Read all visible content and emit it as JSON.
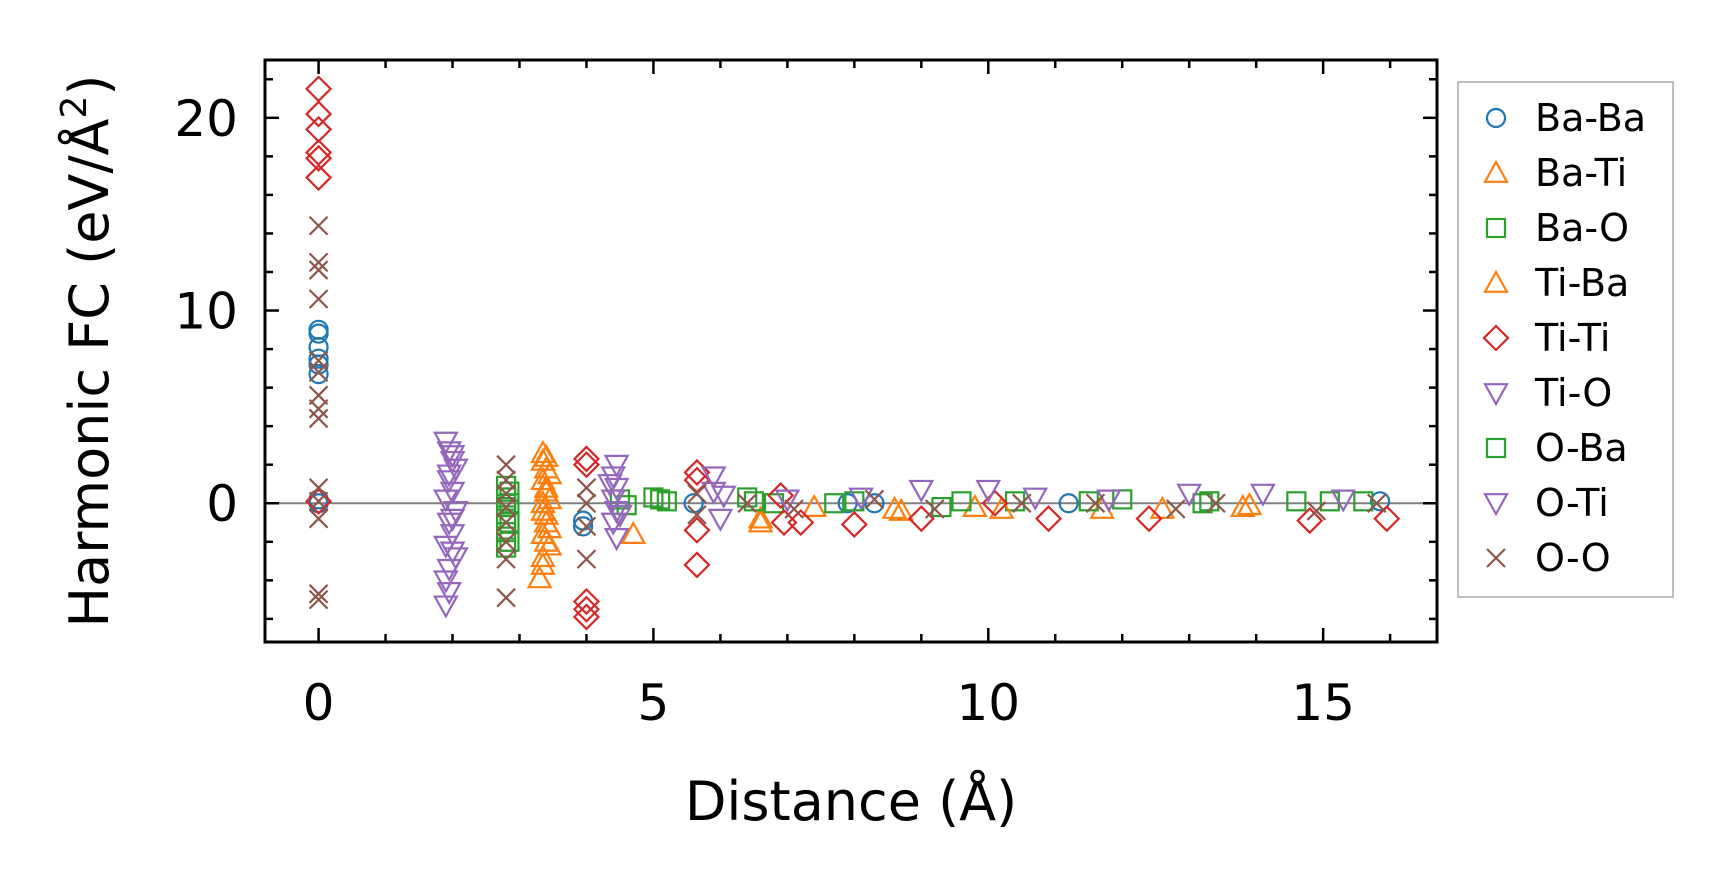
{
  "chart_data": {
    "type": "scatter",
    "title": "",
    "xlabel": "Distance (Å)",
    "ylabel": "Harmonic FC (eV/Å",
    "ylabel_sup": "2",
    "ylabel_close": ")",
    "xlim": [
      -0.8,
      16.7
    ],
    "ylim": [
      -7.2,
      23.0
    ],
    "xticks": [
      0,
      5,
      10,
      15
    ],
    "yticks": [
      0,
      10,
      20
    ],
    "zero_line": true,
    "legend_position": "outside-right",
    "series": [
      {
        "name": "Ba-Ba",
        "marker": "circle",
        "color": "#1f77b4",
        "points": [
          [
            0,
            9.0
          ],
          [
            0,
            8.8
          ],
          [
            0,
            8.1
          ],
          [
            0,
            7.5
          ],
          [
            0,
            7.2
          ],
          [
            0,
            6.7
          ],
          [
            0,
            0.2
          ],
          [
            0,
            0.0
          ],
          [
            3.95,
            -1.2
          ],
          [
            3.95,
            -0.9
          ],
          [
            5.6,
            0.0
          ],
          [
            7.9,
            0.0
          ],
          [
            8.3,
            0.0
          ],
          [
            11.2,
            0.0
          ],
          [
            15.85,
            0.1
          ]
        ]
      },
      {
        "name": "Ba-Ti",
        "marker": "triangle-up",
        "color": "#ff7f0e",
        "points": [
          [
            3.35,
            2.6
          ],
          [
            3.35,
            2.2
          ],
          [
            3.4,
            1.8
          ],
          [
            3.35,
            1.2
          ],
          [
            3.4,
            0.6
          ],
          [
            3.45,
            0.2
          ],
          [
            3.35,
            -0.4
          ],
          [
            3.4,
            -1.0
          ],
          [
            3.35,
            -1.6
          ],
          [
            3.45,
            -2.2
          ],
          [
            3.35,
            -2.8
          ],
          [
            3.35,
            -3.2
          ],
          [
            3.3,
            -3.9
          ],
          [
            4.7,
            -1.6
          ],
          [
            6.6,
            -0.8
          ],
          [
            8.6,
            -0.3
          ],
          [
            9.8,
            -0.2
          ],
          [
            11.7,
            -0.3
          ],
          [
            13.8,
            -0.2
          ]
        ]
      },
      {
        "name": "Ba-O",
        "marker": "square",
        "color": "#2ca02c",
        "points": [
          [
            2.8,
            0.9
          ],
          [
            2.8,
            0.3
          ],
          [
            2.8,
            -0.2
          ],
          [
            2.8,
            -0.8
          ],
          [
            2.8,
            -1.5
          ],
          [
            2.8,
            -2.3
          ],
          [
            4.5,
            0.2
          ],
          [
            4.6,
            -0.1
          ],
          [
            5.0,
            0.3
          ],
          [
            5.2,
            0.1
          ],
          [
            6.4,
            0.3
          ],
          [
            6.8,
            0.0
          ],
          [
            8.0,
            0.1
          ],
          [
            9.3,
            -0.2
          ],
          [
            10.4,
            0.1
          ],
          [
            12.0,
            0.2
          ],
          [
            13.2,
            0.0
          ],
          [
            14.6,
            0.1
          ],
          [
            15.6,
            0.1
          ]
        ]
      },
      {
        "name": "Ti-Ba",
        "marker": "triangle-up",
        "color": "#ff7f0e",
        "points": [
          [
            3.4,
            2.4
          ],
          [
            3.45,
            1.5
          ],
          [
            3.4,
            0.8
          ],
          [
            3.35,
            0.0
          ],
          [
            3.4,
            -0.6
          ],
          [
            3.45,
            -1.3
          ],
          [
            3.4,
            -2.0
          ],
          [
            6.6,
            -1.0
          ],
          [
            7.4,
            -0.2
          ],
          [
            8.7,
            -0.4
          ],
          [
            10.2,
            -0.3
          ],
          [
            12.6,
            -0.3
          ],
          [
            13.9,
            -0.1
          ]
        ]
      },
      {
        "name": "Ti-Ti",
        "marker": "diamond",
        "color": "#d62728",
        "points": [
          [
            0,
            21.5
          ],
          [
            0,
            20.2
          ],
          [
            0,
            19.4
          ],
          [
            0,
            18.2
          ],
          [
            0,
            17.9
          ],
          [
            0,
            16.9
          ],
          [
            0,
            0.1
          ],
          [
            4.0,
            2.3
          ],
          [
            4.0,
            2.0
          ],
          [
            4.0,
            -5.1
          ],
          [
            4.0,
            -5.5
          ],
          [
            4.0,
            -5.9
          ],
          [
            5.65,
            1.6
          ],
          [
            5.65,
            1.2
          ],
          [
            5.65,
            -1.4
          ],
          [
            5.65,
            -3.2
          ],
          [
            6.9,
            0.4
          ],
          [
            6.95,
            -1.0
          ],
          [
            7.2,
            -1.0
          ],
          [
            8.0,
            -1.1
          ],
          [
            9.0,
            -0.8
          ],
          [
            10.1,
            0.0
          ],
          [
            10.9,
            -0.8
          ],
          [
            12.4,
            -0.8
          ],
          [
            14.8,
            -0.9
          ],
          [
            15.95,
            -0.8
          ]
        ]
      },
      {
        "name": "Ti-O",
        "marker": "triangle-down",
        "color": "#9467bd",
        "points": [
          [
            1.9,
            3.2
          ],
          [
            1.95,
            2.7
          ],
          [
            2.0,
            2.2
          ],
          [
            2.05,
            1.8
          ],
          [
            1.95,
            1.2
          ],
          [
            2.0,
            0.6
          ],
          [
            1.9,
            0.2
          ],
          [
            2.05,
            -0.4
          ],
          [
            1.95,
            -1.0
          ],
          [
            2.0,
            -1.6
          ],
          [
            1.9,
            -2.2
          ],
          [
            2.05,
            -2.8
          ],
          [
            1.95,
            -3.4
          ],
          [
            1.9,
            -4.0
          ],
          [
            1.95,
            -4.6
          ],
          [
            1.9,
            -5.3
          ],
          [
            4.45,
            2.0
          ],
          [
            4.4,
            1.4
          ],
          [
            4.45,
            0.8
          ],
          [
            4.4,
            0.2
          ],
          [
            4.45,
            -0.4
          ],
          [
            4.4,
            -1.0
          ],
          [
            4.45,
            -1.8
          ],
          [
            5.9,
            1.4
          ],
          [
            5.9,
            0.6
          ],
          [
            6.0,
            -0.8
          ],
          [
            9.0,
            0.7
          ],
          [
            10.0,
            0.7
          ],
          [
            13.0,
            0.5
          ],
          [
            14.1,
            0.5
          ]
        ]
      },
      {
        "name": "O-Ba",
        "marker": "square",
        "color": "#2ca02c",
        "points": [
          [
            2.85,
            0.6
          ],
          [
            2.85,
            0.0
          ],
          [
            2.85,
            -1.0
          ],
          [
            2.85,
            -2.0
          ],
          [
            5.1,
            0.2
          ],
          [
            6.5,
            0.1
          ],
          [
            7.7,
            0.0
          ],
          [
            9.6,
            0.1
          ],
          [
            11.5,
            0.1
          ],
          [
            13.3,
            0.1
          ],
          [
            15.1,
            0.1
          ]
        ]
      },
      {
        "name": "O-Ti",
        "marker": "triangle-down",
        "color": "#9467bd",
        "points": [
          [
            2.0,
            2.5
          ],
          [
            1.95,
            1.5
          ],
          [
            2.0,
            -0.8
          ],
          [
            2.0,
            -2.5
          ],
          [
            4.35,
            1.0
          ],
          [
            4.5,
            -0.6
          ],
          [
            6.05,
            0.4
          ],
          [
            7.0,
            0.2
          ],
          [
            8.1,
            0.3
          ],
          [
            10.7,
            0.3
          ],
          [
            11.8,
            0.2
          ],
          [
            15.3,
            0.2
          ]
        ]
      },
      {
        "name": "O-O",
        "marker": "x",
        "color": "#8c564b",
        "points": [
          [
            0,
            14.4
          ],
          [
            0,
            12.5
          ],
          [
            0,
            12.1
          ],
          [
            0,
            10.6
          ],
          [
            0,
            7.4
          ],
          [
            0,
            6.8
          ],
          [
            0,
            5.6
          ],
          [
            0,
            4.9
          ],
          [
            0,
            4.4
          ],
          [
            0,
            0.8
          ],
          [
            0,
            0.1
          ],
          [
            0,
            -0.8
          ],
          [
            0,
            -4.7
          ],
          [
            0,
            -5.0
          ],
          [
            2.8,
            2.0
          ],
          [
            2.8,
            1.2
          ],
          [
            2.8,
            0.5
          ],
          [
            2.8,
            -0.2
          ],
          [
            2.8,
            -1.0
          ],
          [
            2.8,
            -2.0
          ],
          [
            2.8,
            -2.9
          ],
          [
            2.8,
            -4.9
          ],
          [
            4.0,
            0.8
          ],
          [
            4.0,
            0.0
          ],
          [
            4.0,
            -1.2
          ],
          [
            4.0,
            -2.9
          ],
          [
            5.65,
            0.5
          ],
          [
            5.65,
            -0.6
          ],
          [
            6.4,
            0.0
          ],
          [
            7.1,
            -0.3
          ],
          [
            8.3,
            0.2
          ],
          [
            9.2,
            -0.3
          ],
          [
            10.5,
            0.0
          ],
          [
            11.6,
            0.0
          ],
          [
            12.8,
            -0.3
          ],
          [
            13.4,
            0.0
          ],
          [
            14.9,
            -0.4
          ],
          [
            15.8,
            0.0
          ]
        ]
      }
    ]
  }
}
